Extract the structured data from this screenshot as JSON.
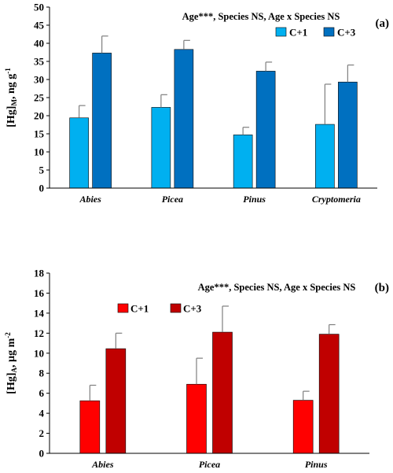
{
  "chart_data": [
    {
      "type": "bar",
      "panel_label": "(a)",
      "annotation": "Age***, Species NS, Age x Species NS",
      "ylabel": {
        "main": "[Hg]",
        "sub": "M",
        "unit": ", ng g",
        "sup": "-1"
      },
      "xlabel": "",
      "categories": [
        "Abies",
        "Picea",
        "Pinus",
        "Cryptomeria"
      ],
      "ylim": [
        0,
        50
      ],
      "yticks": [
        0,
        5,
        10,
        15,
        20,
        25,
        30,
        35,
        40,
        45,
        50
      ],
      "grid": false,
      "legend_position": "top-right",
      "series": [
        {
          "name": "C+1",
          "color": "#00B0F0",
          "values": [
            19.4,
            22.3,
            14.7,
            17.6
          ],
          "errors": [
            3.4,
            3.5,
            2.1,
            11.1
          ]
        },
        {
          "name": "C+3",
          "color": "#0070C0",
          "values": [
            37.3,
            38.3,
            32.3,
            29.3
          ],
          "errors": [
            4.7,
            2.5,
            2.5,
            4.7
          ]
        }
      ]
    },
    {
      "type": "bar",
      "panel_label": "(b)",
      "annotation": "Age***, Species NS, Age x Species NS",
      "ylabel": {
        "main": "[Hg]",
        "sub": "A",
        "unit": ", µg m",
        "sup": "-2"
      },
      "xlabel": "",
      "categories": [
        "Abies",
        "Picea",
        "Pinus"
      ],
      "ylim": [
        0,
        18
      ],
      "yticks": [
        0,
        2,
        4,
        6,
        8,
        10,
        12,
        14,
        16,
        18
      ],
      "grid": false,
      "legend_position": "top-left",
      "series": [
        {
          "name": "C+1",
          "color": "#FF0000",
          "values": [
            5.25,
            6.9,
            5.3
          ],
          "errors": [
            1.55,
            2.6,
            0.9
          ]
        },
        {
          "name": "C+3",
          "color": "#C00000",
          "values": [
            10.45,
            12.1,
            11.9
          ],
          "errors": [
            1.55,
            2.6,
            0.95
          ]
        }
      ]
    }
  ]
}
